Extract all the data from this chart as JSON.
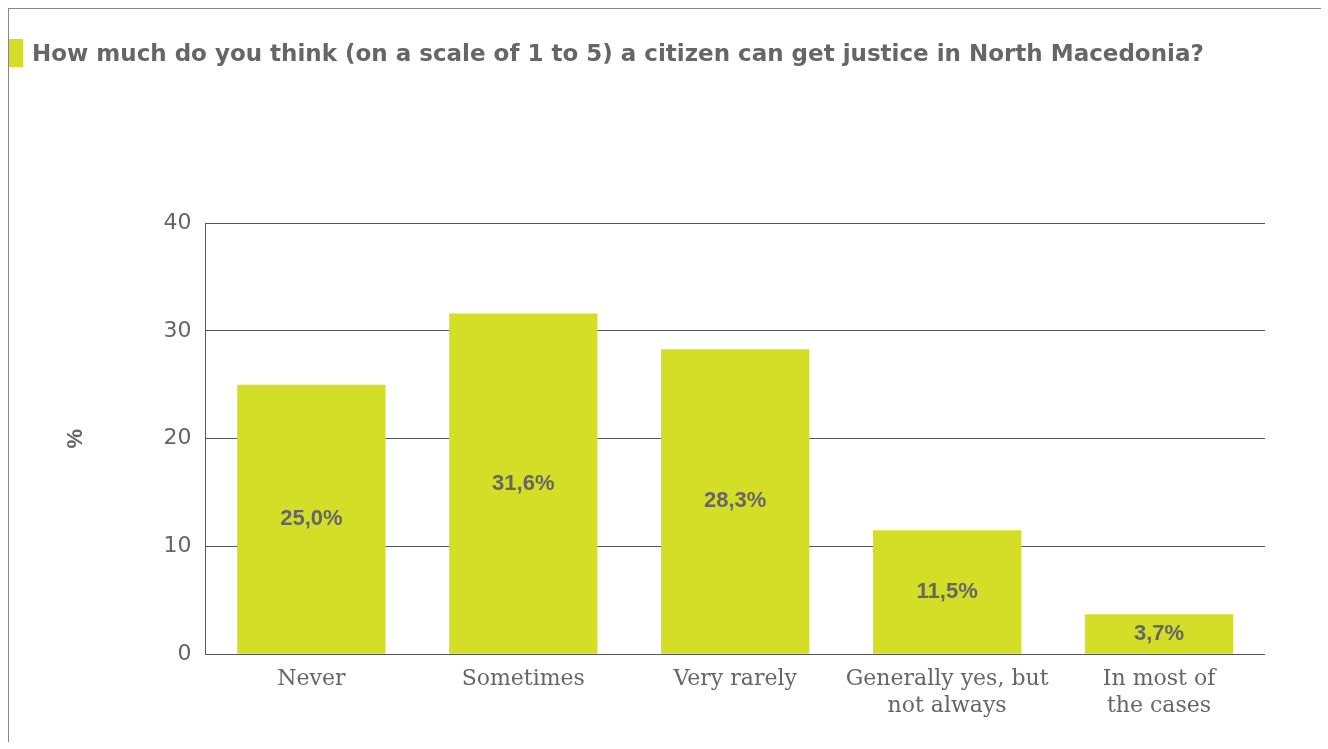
{
  "chart_data": {
    "type": "bar",
    "title": "How much do you think (on a scale of 1 to 5) a citizen can get justice in North Macedonia?",
    "ylabel": "%",
    "categories": [
      "Never",
      "Sometimes",
      "Very rarely",
      "Generally yes, but not always",
      "In most of the cases"
    ],
    "values": [
      25.0,
      31.6,
      28.3,
      11.5,
      3.7
    ],
    "color": "#d5de26",
    "value_labels": [
      "25,0%",
      "31,6%",
      "28,3%",
      "11,5%",
      "3,7%"
    ],
    "ylim": [
      0,
      40
    ],
    "yticks": [
      0,
      10,
      20,
      30,
      40
    ],
    "grid": "y",
    "legend": false
  }
}
